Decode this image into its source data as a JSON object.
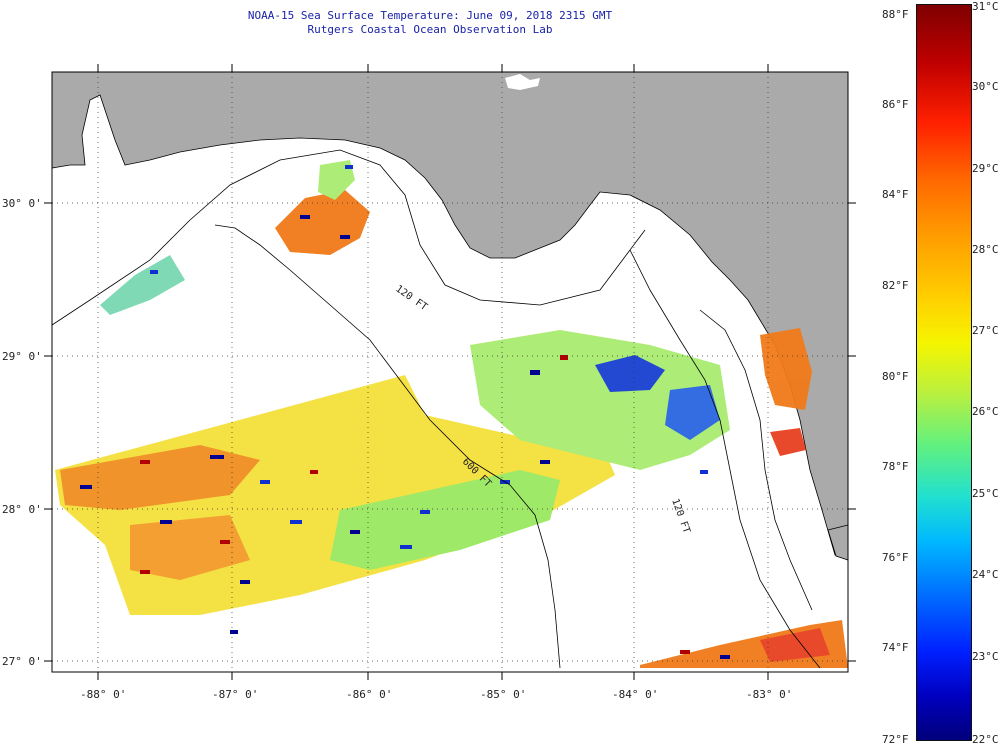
{
  "title": {
    "line1": "NOAA-15 Sea Surface Temperature:  June 09, 2018 2315 GMT",
    "line2": "Rutgers Coastal Ocean Observation Lab"
  },
  "longitude_labels": [
    "-88° 0'",
    "-87° 0'",
    "-86° 0'",
    "-85° 0'",
    "-84° 0'",
    "-83° 0'"
  ],
  "latitude_labels": [
    "30° 0'",
    "29° 0'",
    "28° 0'",
    "27° 0'"
  ],
  "isobaths": [
    {
      "label": "120 FT"
    },
    {
      "label": "600 FT"
    },
    {
      "label": "120 FT"
    }
  ],
  "colorbar": {
    "fahrenheit": [
      "88°F",
      "86°F",
      "84°F",
      "82°F",
      "80°F",
      "78°F",
      "76°F",
      "74°F",
      "72°F"
    ],
    "celsius": [
      "31°C",
      "30°C",
      "29°C",
      "28°C",
      "27°C",
      "26°C",
      "25°C",
      "24°C",
      "23°C",
      "22°C"
    ]
  },
  "colors": {
    "land": "#aaaaaa",
    "title": "#1a22a8",
    "warm": "#f07a18",
    "yellow": "#f6e400",
    "green": "#b8f060",
    "blue": "#1030d0",
    "cold": "#000090"
  }
}
